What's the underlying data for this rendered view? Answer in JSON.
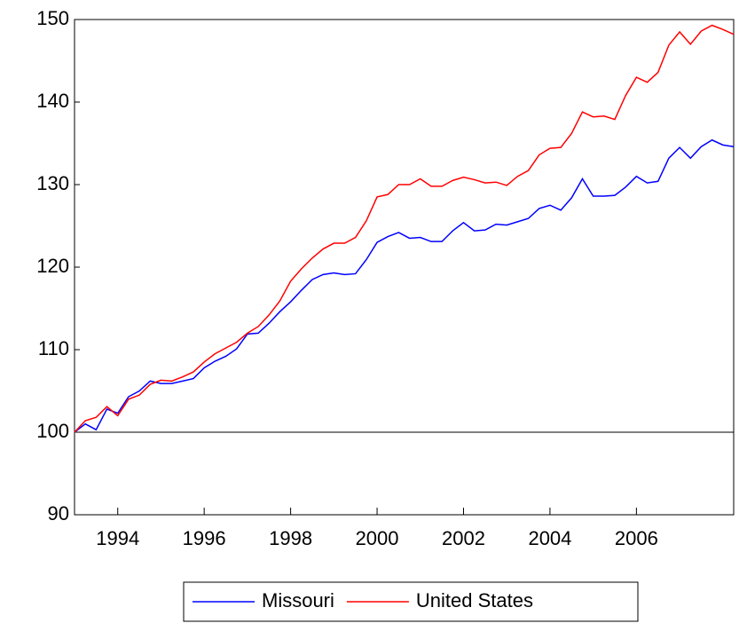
{
  "chart_data": {
    "type": "line",
    "x": [
      1993,
      1993.25,
      1993.5,
      1993.75,
      1994,
      1994.25,
      1994.5,
      1994.75,
      1995,
      1995.25,
      1995.5,
      1995.75,
      1996,
      1996.25,
      1996.5,
      1996.75,
      1997,
      1997.25,
      1997.5,
      1997.75,
      1998,
      1998.25,
      1998.5,
      1998.75,
      1999,
      1999.25,
      1999.5,
      1999.75,
      2000,
      2000.25,
      2000.5,
      2000.75,
      2001,
      2001.25,
      2001.5,
      2001.75,
      2002,
      2002.25,
      2002.5,
      2002.75,
      2003,
      2003.25,
      2003.5,
      2003.75,
      2004,
      2004.25,
      2004.5,
      2004.75,
      2005,
      2005.25,
      2005.5,
      2005.75,
      2006,
      2006.25,
      2006.5,
      2006.75,
      2007,
      2007.25,
      2007.5,
      2007.75,
      2008,
      2008.25
    ],
    "series": [
      {
        "name": "Missouri",
        "color": "#0000ff",
        "values": [
          100,
          101,
          100.3,
          102.8,
          102.3,
          104.3,
          105,
          106.2,
          105.9,
          105.9,
          106.2,
          106.5,
          107.8,
          108.6,
          109.2,
          110.1,
          111.9,
          112,
          113.2,
          114.6,
          115.8,
          117.2,
          118.5,
          119.1,
          119.3,
          119.1,
          119.2,
          120.9,
          123,
          123.7,
          124.2,
          123.5,
          123.6,
          123.1,
          123.1,
          124.4,
          125.4,
          124.4,
          124.5,
          125.2,
          125.1,
          125.5,
          125.9,
          127.1,
          127.5,
          126.9,
          128.4,
          130.7,
          128.6,
          128.6,
          128.7,
          129.7,
          131,
          130.2,
          130.4,
          133.2,
          134.5,
          133.2,
          134.6,
          135.4,
          134.8,
          134.6
        ]
      },
      {
        "name": "United States",
        "color": "#ff0000",
        "values": [
          100,
          101.4,
          101.8,
          103.1,
          102,
          104,
          104.5,
          105.8,
          106.3,
          106.2,
          106.7,
          107.3,
          108.5,
          109.5,
          110.2,
          110.9,
          112,
          112.8,
          114.2,
          115.9,
          118.3,
          119.8,
          121.1,
          122.2,
          122.9,
          122.9,
          123.6,
          125.6,
          128.5,
          128.8,
          130,
          130,
          130.7,
          129.8,
          129.8,
          130.5,
          130.9,
          130.6,
          130.2,
          130.3,
          129.9,
          131,
          131.7,
          133.6,
          134.4,
          134.5,
          136.2,
          138.8,
          138.2,
          138.3,
          137.9,
          140.8,
          143,
          142.4,
          143.6,
          146.9,
          148.5,
          147,
          148.6,
          149.3,
          148.8,
          148.2
        ]
      }
    ],
    "xlim": [
      1993,
      2008.25
    ],
    "xticks": [
      1994,
      1996,
      1998,
      2000,
      2002,
      2004,
      2006
    ],
    "ylim": [
      90,
      150
    ],
    "yticks": [
      90,
      100,
      110,
      120,
      130,
      140,
      150
    ],
    "reference_line": 100,
    "legend": "bottom"
  }
}
